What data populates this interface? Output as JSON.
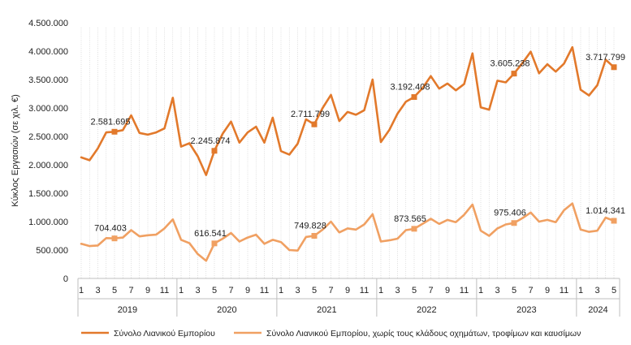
{
  "chart_data": {
    "type": "line",
    "ylabel": "Κύκλος Εργασιών (σε χιλ. €)",
    "ylim": [
      0,
      4500000
    ],
    "y_ticks": [
      0,
      500000,
      1000000,
      1500000,
      2000000,
      2500000,
      3000000,
      3500000,
      4000000,
      4500000
    ],
    "y_tick_labels": [
      "0",
      "500.000",
      "1.000.000",
      "1.500.000",
      "2.000.000",
      "2.500.000",
      "3.000.000",
      "3.500.000",
      "4.000.000",
      "4.500.000"
    ],
    "x_month_labels": [
      "1",
      "3",
      "5",
      "7",
      "9",
      "11",
      "1",
      "3",
      "5",
      "7",
      "9",
      "11",
      "1",
      "3",
      "5",
      "7",
      "9",
      "11",
      "1",
      "3",
      "5",
      "7",
      "9",
      "11",
      "1",
      "3",
      "5",
      "7",
      "9",
      "11",
      "1",
      "3",
      "5"
    ],
    "years": [
      "2019",
      "2020",
      "2021",
      "2022",
      "2023",
      "2024"
    ],
    "grid": "vertical dotted lines at each month",
    "legend_position": "bottom",
    "series": [
      {
        "name": "Σύνολο Λιανικού Εμπορίου",
        "color": "#E2792B",
        "values": [
          2130000,
          2080000,
          2290000,
          2570000,
          2581695,
          2610000,
          2870000,
          2560000,
          2530000,
          2570000,
          2640000,
          3180000,
          2320000,
          2380000,
          2150000,
          1820000,
          2245874,
          2550000,
          2760000,
          2390000,
          2570000,
          2670000,
          2390000,
          2830000,
          2240000,
          2180000,
          2370000,
          2800000,
          2711799,
          3000000,
          3230000,
          2770000,
          2930000,
          2880000,
          2960000,
          3500000,
          2400000,
          2610000,
          2900000,
          3110000,
          3192408,
          3350000,
          3560000,
          3340000,
          3430000,
          3310000,
          3420000,
          3960000,
          3010000,
          2970000,
          3480000,
          3450000,
          3605238,
          3790000,
          3990000,
          3610000,
          3770000,
          3640000,
          3780000,
          4070000,
          3320000,
          3220000,
          3400000,
          3850000,
          3717799
        ],
        "labels": [
          {
            "index": 4,
            "text": "2.581.695"
          },
          {
            "index": 16,
            "text": "2.245.874"
          },
          {
            "index": 28,
            "text": "2.711.799"
          },
          {
            "index": 40,
            "text": "3.192.408"
          },
          {
            "index": 52,
            "text": "3.605.238"
          },
          {
            "index": 64,
            "text": "3.717.799"
          }
        ]
      },
      {
        "name": "Σύνολο Λιανικού Εμπορίου, χωρίς τους κλάδους οχημάτων, τροφίμων και καυσίμων",
        "color": "#F0A062",
        "values": [
          610000,
          570000,
          580000,
          710000,
          704403,
          720000,
          850000,
          740000,
          760000,
          770000,
          880000,
          1040000,
          680000,
          620000,
          430000,
          310000,
          616541,
          700000,
          800000,
          650000,
          720000,
          770000,
          610000,
          680000,
          640000,
          500000,
          490000,
          730000,
          749828,
          860000,
          1000000,
          810000,
          880000,
          860000,
          950000,
          1130000,
          650000,
          670000,
          700000,
          850000,
          873565,
          960000,
          1050000,
          960000,
          1030000,
          990000,
          1120000,
          1300000,
          840000,
          750000,
          880000,
          950000,
          975406,
          1060000,
          1160000,
          1000000,
          1030000,
          990000,
          1200000,
          1320000,
          860000,
          820000,
          840000,
          1070000,
          1014341
        ],
        "labels": [
          {
            "index": 4,
            "text": "704.403"
          },
          {
            "index": 16,
            "text": "616.541"
          },
          {
            "index": 28,
            "text": "749.828"
          },
          {
            "index": 40,
            "text": "873.565"
          },
          {
            "index": 52,
            "text": "975.406"
          },
          {
            "index": 64,
            "text": "1.014.341"
          }
        ]
      }
    ]
  }
}
